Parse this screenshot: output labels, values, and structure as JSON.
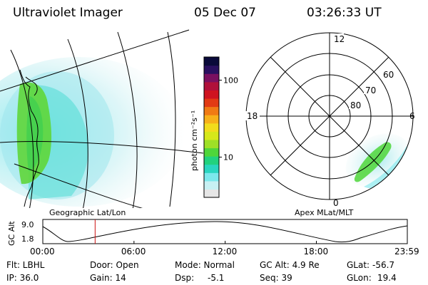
{
  "header": {
    "instrument": "Ultraviolet Imager",
    "date": "05 Dec 07",
    "time": "03:26:33 UT"
  },
  "left_panel": {
    "label": "Geographic Lat/Lon"
  },
  "right_panel": {
    "label": "Apex MLat/MLT",
    "lat_labels": [
      "80",
      "70",
      "60"
    ],
    "mlt_labels": [
      "12",
      "18",
      "6",
      "0"
    ]
  },
  "colorbar": {
    "unit": "photon cm⁻²s⁻¹",
    "ticks": [
      "100",
      "10"
    ],
    "tick_values": [
      100,
      10
    ],
    "range": [
      3,
      200
    ],
    "colors": [
      "#e6e6e6",
      "#c7f0f3",
      "#7ce8ec",
      "#2ad6c0",
      "#22d27e",
      "#4fd63a",
      "#9ee026",
      "#d6e81a",
      "#f2dc1c",
      "#f7b01a",
      "#f07a14",
      "#e23a14",
      "#cf1420",
      "#b0103a",
      "#7a1060",
      "#2a1060",
      "#0a0a3a"
    ],
    "scale": "log"
  },
  "timeline": {
    "y_label": "GC Alt",
    "y_ticks": [
      "9.0",
      "1.8"
    ],
    "x_ticks": [
      "00:00",
      "06:00",
      "12:00",
      "18:00",
      "23:59"
    ],
    "marker_time": "03:26:33",
    "marker_color": "#cc1111"
  },
  "footer": {
    "flt": "Flt: LBHL",
    "ip": "IP: 36.0",
    "door": "Door: Open",
    "gain": "Gain: 14",
    "mode": "Mode: Normal",
    "dsp_label": "Dsp:",
    "dsp_value": "-5.1",
    "gc_alt": "GC Alt: 4.9 Re",
    "seq": "Seq: 39",
    "glat_label": "GLat:",
    "glat_value": "-56.7",
    "glon_label": "GLon:",
    "glon_value": "19.4"
  }
}
